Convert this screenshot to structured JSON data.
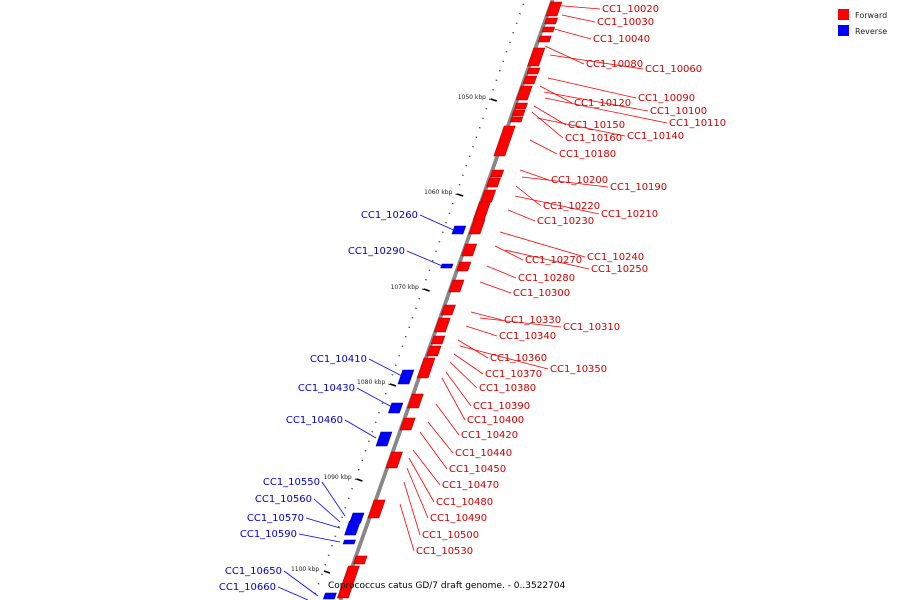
{
  "caption": "Coprococcus catus GD/7 draft genome. - 0..3522704",
  "legend": [
    {
      "label": "Forward",
      "color": "#ff0000"
    },
    {
      "label": "Reverse",
      "color": "#0000ff"
    }
  ],
  "ticks": [
    "1050 kbp",
    "1060 kbp",
    "1070 kbp",
    "1080 kbp",
    "1090 kbp",
    "1100 kbp"
  ],
  "forward_genes": [
    "CC1_10020",
    "CC1_10030",
    "CC1_10040",
    "CC1_10080",
    "CC1_10060",
    "CC1_10090",
    "CC1_10120",
    "CC1_10100",
    "CC1_10110",
    "CC1_10150",
    "CC1_10160",
    "CC1_10140",
    "CC1_10180",
    "CC1_10200",
    "CC1_10190",
    "CC1_10220",
    "CC1_10210",
    "CC1_10230",
    "CC1_10240",
    "CC1_10270",
    "CC1_10250",
    "CC1_10280",
    "CC1_10300",
    "CC1_10330",
    "CC1_10310",
    "CC1_10340",
    "CC1_10360",
    "CC1_10350",
    "CC1_10370",
    "CC1_10380",
    "CC1_10390",
    "CC1_10400",
    "CC1_10420",
    "CC1_10440",
    "CC1_10450",
    "CC1_10470",
    "CC1_10480",
    "CC1_10490",
    "CC1_10500",
    "CC1_10530"
  ],
  "reverse_genes": [
    "CC1_10260",
    "CC1_10290",
    "CC1_10410",
    "CC1_10430",
    "CC1_10460",
    "CC1_10550",
    "CC1_10560",
    "CC1_10570",
    "CC1_10590",
    "CC1_10650",
    "CC1_10660"
  ]
}
